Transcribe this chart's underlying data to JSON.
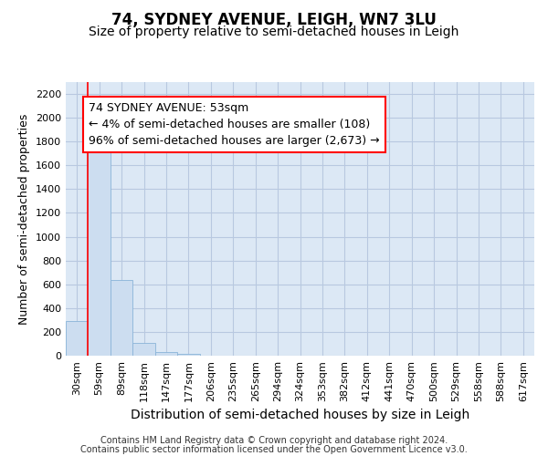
{
  "title": "74, SYDNEY AVENUE, LEIGH, WN7 3LU",
  "subtitle": "Size of property relative to semi-detached houses in Leigh",
  "xlabel": "Distribution of semi-detached houses by size in Leigh",
  "ylabel": "Number of semi-detached properties",
  "categories": [
    "30sqm",
    "59sqm",
    "89sqm",
    "118sqm",
    "147sqm",
    "177sqm",
    "206sqm",
    "235sqm",
    "265sqm",
    "294sqm",
    "324sqm",
    "353sqm",
    "382sqm",
    "412sqm",
    "441sqm",
    "470sqm",
    "500sqm",
    "529sqm",
    "558sqm",
    "588sqm",
    "617sqm"
  ],
  "values": [
    290,
    1730,
    640,
    110,
    30,
    15,
    0,
    0,
    0,
    0,
    0,
    0,
    0,
    0,
    0,
    0,
    0,
    0,
    0,
    0,
    0
  ],
  "bar_color": "#ccddf0",
  "bar_edge_color": "#8ab4d8",
  "annotation_text": "74 SYDNEY AVENUE: 53sqm\n← 4% of semi-detached houses are smaller (108)\n96% of semi-detached houses are larger (2,673) →",
  "annotation_box_color": "white",
  "annotation_box_edge_color": "red",
  "vline_x": 1,
  "vline_color": "red",
  "ylim": [
    0,
    2300
  ],
  "yticks": [
    0,
    200,
    400,
    600,
    800,
    1000,
    1200,
    1400,
    1600,
    1800,
    2000,
    2200
  ],
  "grid_color": "#b8c8e0",
  "bg_color": "#dce8f5",
  "footer_line1": "Contains HM Land Registry data © Crown copyright and database right 2024.",
  "footer_line2": "Contains public sector information licensed under the Open Government Licence v3.0.",
  "title_fontsize": 12,
  "subtitle_fontsize": 10,
  "xlabel_fontsize": 10,
  "ylabel_fontsize": 9,
  "tick_fontsize": 8,
  "annotation_fontsize": 9,
  "footer_fontsize": 7
}
